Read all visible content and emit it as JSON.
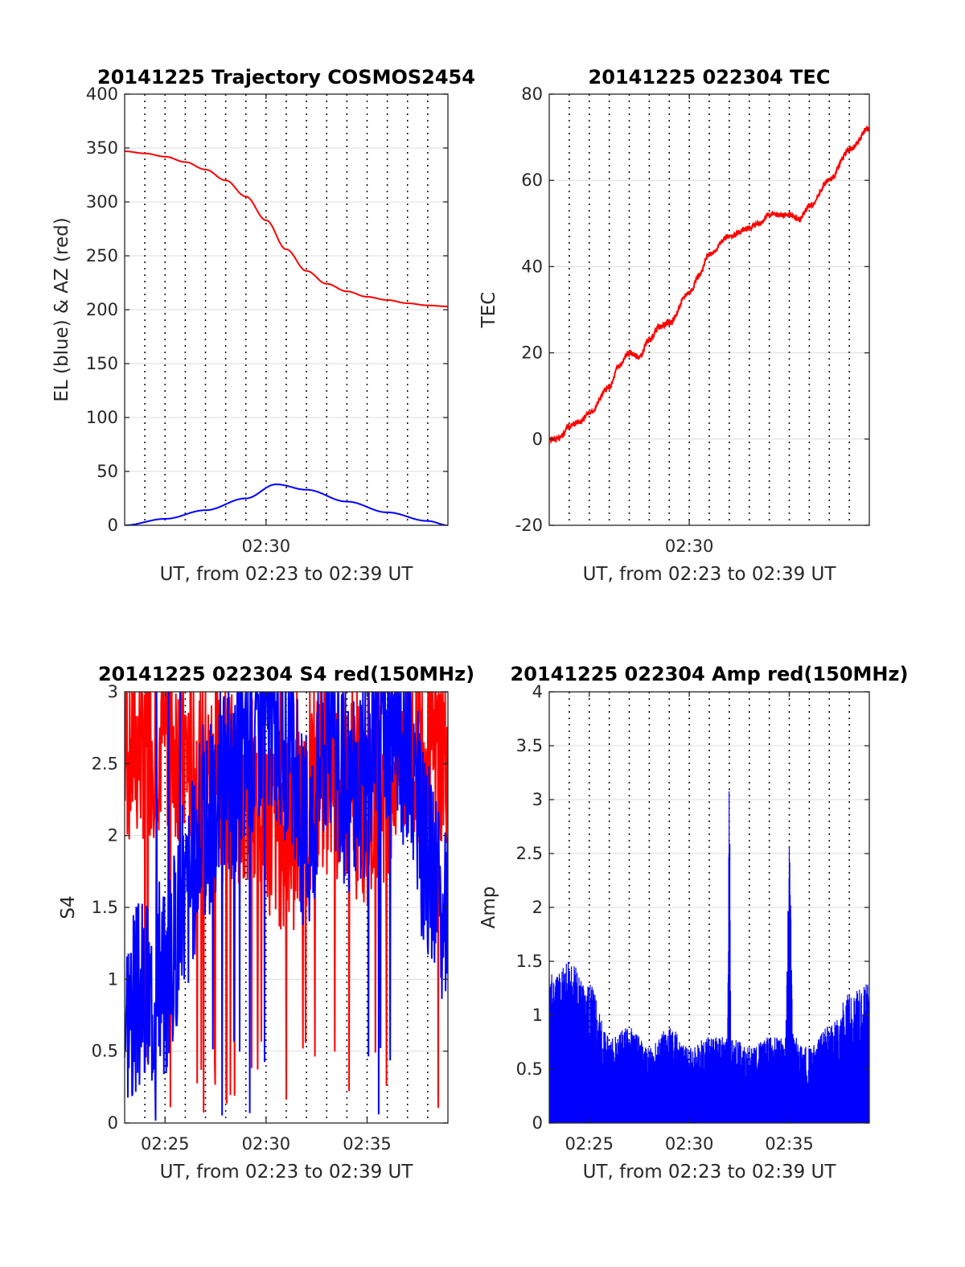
{
  "chart_data": [
    {
      "type": "line",
      "title": "20141225 Trajectory COSMOS2454",
      "xlabel": "UT, from 02:23 to 02:39 UT",
      "ylabel": "EL (blue) & AZ (red)",
      "xlim": [
        0,
        16
      ],
      "ylim": [
        0,
        400
      ],
      "yticks": [
        0,
        50,
        100,
        150,
        200,
        250,
        300,
        350,
        400
      ],
      "ytick_labels": [
        "0",
        "50",
        "100",
        "150",
        "200",
        "250",
        "300",
        "350",
        "400"
      ],
      "xticks": [
        7
      ],
      "xtick_labels": [
        "02:30"
      ],
      "grid": true,
      "colors": {
        "AZ": "#ff0000",
        "EL": "#0000ff"
      },
      "series": [
        {
          "color": "#ff0000",
          "style": "smooth",
          "x": [
            0,
            1,
            2,
            3,
            4,
            5,
            6,
            7,
            8,
            9,
            10,
            11,
            12,
            13,
            14,
            15,
            16
          ],
          "y": [
            347,
            345,
            342,
            337,
            330,
            320,
            305,
            283,
            256,
            236,
            224,
            217,
            212,
            209,
            206,
            204,
            203
          ]
        },
        {
          "color": "#0000ff",
          "style": "smooth",
          "x": [
            0,
            2,
            4,
            6,
            7.5,
            9,
            11,
            13,
            15,
            16
          ],
          "y": [
            0,
            6,
            14,
            25,
            38,
            33,
            22,
            12,
            4,
            0
          ]
        }
      ]
    },
    {
      "type": "line",
      "title": "20141225 022304 TEC",
      "xlabel": "UT, from 02:23 to 02:39 UT",
      "ylabel": "TEC",
      "xlim": [
        0,
        16
      ],
      "ylim": [
        -20,
        80
      ],
      "yticks": [
        -20,
        0,
        20,
        40,
        60,
        80
      ],
      "ytick_labels": [
        "-20",
        "0",
        "20",
        "40",
        "60",
        "80"
      ],
      "xticks": [
        7
      ],
      "xtick_labels": [
        "02:30"
      ],
      "grid": true,
      "series": [
        {
          "color": "#ff0000",
          "style": "noisy",
          "noise": 0.6,
          "x": [
            0,
            0.5,
            1,
            1.5,
            2,
            3,
            3.5,
            4,
            4.5,
            5,
            5.5,
            6,
            7,
            7.5,
            8,
            9,
            10,
            10.5,
            11,
            12,
            12.5,
            13,
            14,
            15,
            16
          ],
          "y": [
            0,
            0,
            3,
            4,
            6,
            12,
            17,
            20,
            19,
            23,
            26,
            27,
            34,
            38,
            43,
            47,
            49,
            50,
            52,
            52,
            51,
            54,
            60,
            67,
            72
          ]
        }
      ]
    },
    {
      "type": "line",
      "title": "20141225 022304 S4 red(150MHz)",
      "xlabel": "UT, from 02:23 to 02:39 UT",
      "ylabel": "S4",
      "xlim": [
        0,
        16
      ],
      "ylim": [
        0,
        3
      ],
      "yticks": [
        0,
        0.5,
        1,
        1.5,
        2,
        2.5,
        3
      ],
      "ytick_labels": [
        "0",
        "0.5",
        "1",
        "1.5",
        "2",
        "2.5",
        "3"
      ],
      "xticks": [
        2,
        7,
        12
      ],
      "xtick_labels": [
        "02:25",
        "02:30",
        "02:35"
      ],
      "grid": true,
      "series": [
        {
          "color": "#ff0000",
          "style": "spiky",
          "seed": 7,
          "x": [
            0,
            2,
            4,
            6,
            8,
            10,
            12,
            14,
            16
          ],
          "y": [
            2.6,
            2.7,
            2.4,
            2.3,
            2.0,
            2.4,
            2.2,
            2.6,
            2.6
          ]
        },
        {
          "color": "#0000ff",
          "style": "spiky",
          "seed": 3,
          "x": [
            0,
            1,
            2,
            3,
            4,
            5,
            6,
            7,
            8,
            9,
            10,
            11,
            12,
            13,
            14,
            15,
            16
          ],
          "y": [
            0.85,
            0.9,
            1.0,
            1.6,
            2.1,
            2.3,
            2.6,
            2.9,
            2.6,
            2.0,
            2.7,
            2.3,
            2.4,
            2.8,
            2.6,
            1.8,
            1.3
          ]
        }
      ]
    },
    {
      "type": "line",
      "title": "20141225 022304 Amp red(150MHz)",
      "xlabel": "UT, from 02:23 to 02:39 UT",
      "ylabel": "Amp",
      "xlim": [
        0,
        16
      ],
      "ylim": [
        0,
        4
      ],
      "yticks": [
        0,
        0.5,
        1,
        1.5,
        2,
        2.5,
        3,
        3.5,
        4
      ],
      "ytick_labels": [
        "0",
        "0.5",
        "1",
        "1.5",
        "2",
        "2.5",
        "3",
        "3.5",
        "4"
      ],
      "xticks": [
        2,
        7,
        12
      ],
      "xtick_labels": [
        "02:25",
        "02:30",
        "02:35"
      ],
      "grid": true,
      "series": [
        {
          "color": "#0000ff",
          "style": "bars",
          "seed": 11,
          "x": [
            0,
            1,
            2,
            3,
            4,
            5,
            6,
            7,
            8,
            8.9,
            9,
            9.1,
            10,
            11,
            11.8,
            12,
            12.2,
            13,
            14,
            15,
            16
          ],
          "y": [
            1.4,
            1.5,
            1.3,
            0.8,
            0.9,
            0.7,
            0.9,
            0.7,
            0.8,
            0.8,
            3.2,
            0.8,
            0.7,
            0.8,
            0.8,
            2.6,
            0.8,
            0.7,
            0.9,
            1.2,
            1.3
          ]
        }
      ]
    }
  ]
}
